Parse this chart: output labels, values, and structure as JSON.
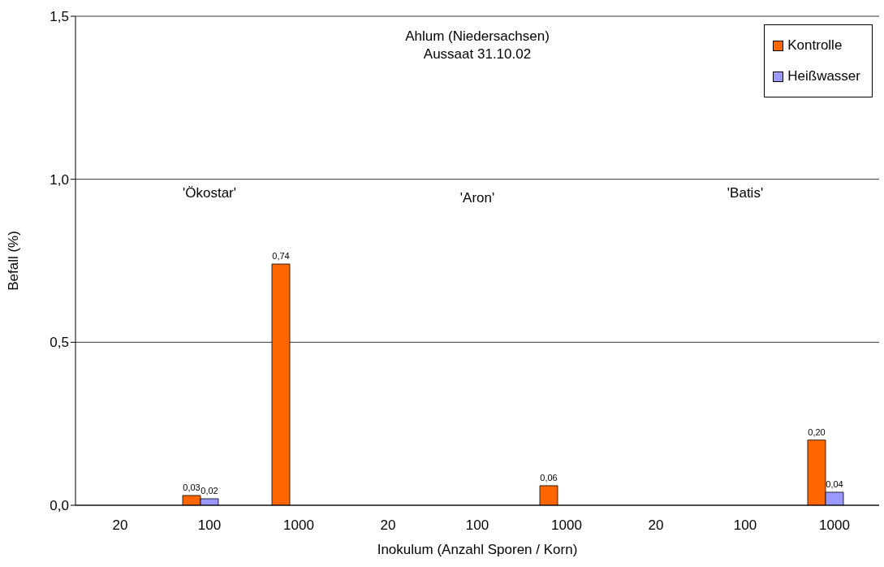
{
  "chart_data": {
    "type": "bar",
    "title": "Ahlum (Niedersachsen)",
    "subtitle": "Aussaat 31.10.02",
    "xlabel": "Inokulum (Anzahl Sporen / Korn)",
    "ylabel": "Befall (%)",
    "categories": [
      "20",
      "100",
      "1000",
      "20",
      "100",
      "1000",
      "20",
      "100",
      "1000"
    ],
    "series": [
      {
        "name": "Kontrolle",
        "color": "#ff6600",
        "values": [
          0,
          0.03,
          0.74,
          0,
          0,
          0.06,
          0,
          0,
          0.2
        ],
        "value_labels": [
          null,
          "0,03",
          "0,74",
          null,
          null,
          "0,06",
          null,
          null,
          "0,20"
        ]
      },
      {
        "name": "Heißwasser",
        "color": "#9999ff",
        "values": [
          0,
          0.02,
          0,
          0,
          0,
          0,
          0,
          0,
          0.04
        ],
        "value_labels": [
          null,
          "0,02",
          null,
          null,
          null,
          null,
          null,
          null,
          "0,04"
        ]
      },
      {
        "color": "#339966",
        "values": [
          0,
          0,
          0,
          0,
          0,
          0,
          0,
          0,
          0
        ]
      }
    ],
    "annotations": [
      "'Ökostar'",
      "'Aron'",
      "'Batis'"
    ],
    "ylim": [
      0,
      1.5
    ],
    "yticks": [
      {
        "value": 0,
        "label": "0,0"
      },
      {
        "value": 0.5,
        "label": "0,5"
      },
      {
        "value": 1,
        "label": "1,0"
      },
      {
        "value": 1.5,
        "label": "1,5"
      }
    ],
    "grid": "y",
    "legend": "top right"
  }
}
